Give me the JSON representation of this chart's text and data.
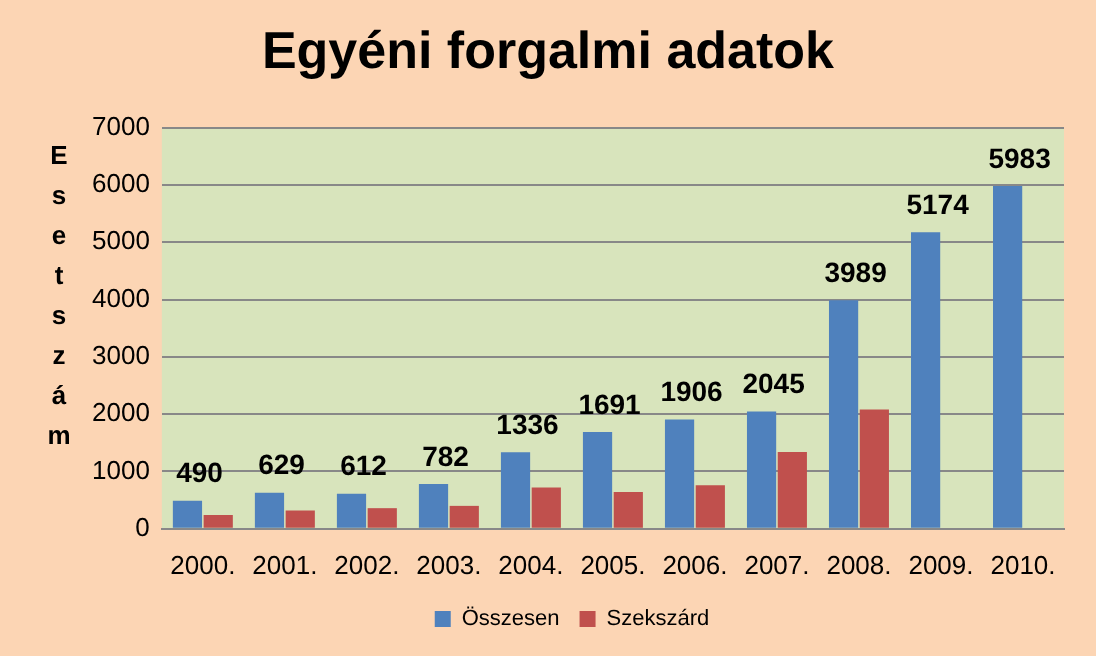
{
  "chart_data": {
    "type": "bar",
    "title": "Egyéni forgalmi adatok",
    "ylabel": "Esetszám",
    "categories": [
      "2000.",
      "2001.",
      "2002.",
      "2003.",
      "2004.",
      "2005.",
      "2006.",
      "2007.",
      "2008.",
      "2009.",
      "2010."
    ],
    "series": [
      {
        "name": "Összesen",
        "color": "#4f81bd",
        "values": [
          490,
          629,
          612,
          782,
          1336,
          1691,
          1906,
          2045,
          3989,
          5174,
          5983
        ],
        "value_labels": [
          "490",
          "629",
          "612",
          "782",
          "1336",
          "1691",
          "1906",
          "2045",
          "3989",
          "5174",
          "5983"
        ]
      },
      {
        "name": "Szekszárd",
        "color": "#c0504d",
        "values": [
          240,
          320,
          360,
          400,
          720,
          640,
          760,
          1340,
          2080,
          null,
          null
        ]
      }
    ],
    "ylim": [
      0,
      7000
    ],
    "yticks": [
      0,
      1000,
      2000,
      3000,
      4000,
      5000,
      6000,
      7000
    ],
    "grid": "y",
    "legend": "bottom"
  }
}
